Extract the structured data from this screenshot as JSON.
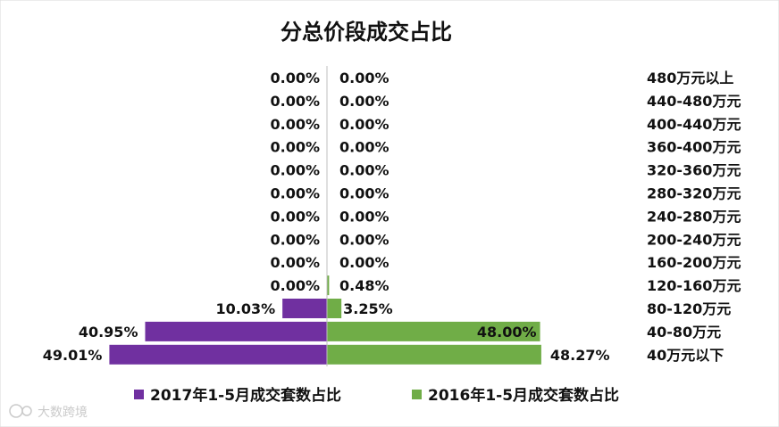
{
  "chart_data": {
    "type": "bar",
    "orientation": "horizontal-butterfly",
    "title": "分总价段成交占比",
    "categories": [
      "480万元以上",
      "440-480万元",
      "400-440万元",
      "360-400万元",
      "320-360万元",
      "280-320万元",
      "240-280万元",
      "200-240万元",
      "160-200万元",
      "120-160万元",
      "80-120万元",
      "40-80万元",
      "40万元以下"
    ],
    "series": [
      {
        "name": "2017年1-5月成交套数占比",
        "color": "#7030a0",
        "side": "left",
        "values": [
          0.0,
          0.0,
          0.0,
          0.0,
          0.0,
          0.0,
          0.0,
          0.0,
          0.0,
          0.0,
          10.03,
          40.95,
          49.01
        ],
        "labels": [
          "0.00%",
          "0.00%",
          "0.00%",
          "0.00%",
          "0.00%",
          "0.00%",
          "0.00%",
          "0.00%",
          "0.00%",
          "0.00%",
          "10.03%",
          "40.95%",
          "49.01%"
        ]
      },
      {
        "name": "2016年1-5月成交套数占比",
        "color": "#70ad47",
        "side": "right",
        "values": [
          0.0,
          0.0,
          0.0,
          0.0,
          0.0,
          0.0,
          0.0,
          0.0,
          0.0,
          0.48,
          3.25,
          48.0,
          48.27
        ],
        "labels": [
          "0.00%",
          "0.00%",
          "0.00%",
          "0.00%",
          "0.00%",
          "0.00%",
          "0.00%",
          "0.00%",
          "0.00%",
          "0.48%",
          "3.25%",
          "48.00%",
          "48.27%"
        ]
      }
    ],
    "unit": "%",
    "legend_position": "bottom",
    "grid": false
  },
  "watermark": "大数跨境"
}
